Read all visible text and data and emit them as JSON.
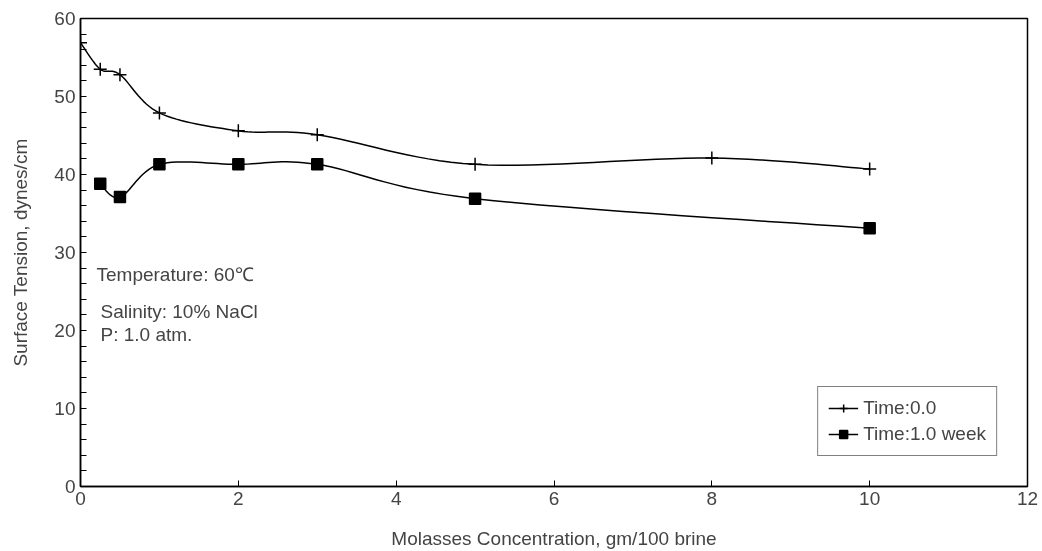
{
  "chart_data": {
    "type": "line",
    "xlabel": "Molasses Concentration, gm/100 brine",
    "ylabel": "Surface Tension, dynes/cm",
    "xlim": [
      0,
      12
    ],
    "xticks": [
      0,
      2,
      4,
      6,
      8,
      10,
      12
    ],
    "ylim": [
      0,
      60
    ],
    "yticks": [
      0,
      {
        "value": 2,
        "label": null
      },
      {
        "value": 4,
        "label": null
      },
      {
        "value": 6,
        "label": null
      },
      {
        "value": 8,
        "label": null
      },
      10,
      {
        "value": 12,
        "label": null
      },
      {
        "value": 14,
        "label": null
      },
      {
        "value": 16,
        "label": null
      },
      {
        "value": 18,
        "label": null
      },
      20,
      {
        "value": 22,
        "label": null
      },
      {
        "value": 24,
        "label": null
      },
      {
        "value": 26,
        "label": null
      },
      {
        "value": 28,
        "label": null
      },
      30,
      {
        "value": 32,
        "label": null
      },
      {
        "value": 34,
        "label": null
      },
      {
        "value": 36,
        "label": null
      },
      {
        "value": 38,
        "label": null
      },
      40,
      {
        "value": 42,
        "label": null
      },
      {
        "value": 44,
        "label": null
      },
      {
        "value": 46,
        "label": null
      },
      {
        "value": 48,
        "label": null
      },
      50,
      {
        "value": 52,
        "label": null
      },
      {
        "value": 54,
        "label": null
      },
      {
        "value": 56,
        "label": null
      },
      {
        "value": 58,
        "label": null
      },
      60
    ],
    "grid": false,
    "legend": "bottom right",
    "annotations": [
      "Temperature: 60℃",
      "Salinity: 10% NaCl",
      "P: 1.0 atm."
    ],
    "series": [
      {
        "name": "Time:0.0",
        "color": "#000000",
        "marker": "cross",
        "x": [
          0,
          0.25,
          0.5,
          1,
          2,
          3,
          5,
          8,
          10
        ],
        "values": [
          56.9,
          53.5,
          52.8,
          47.9,
          45.6,
          45.1,
          41.3,
          42.1,
          40.7
        ]
      },
      {
        "name": "Time:1.0 week",
        "color": "#000000",
        "marker": "square",
        "x": [
          0.25,
          0.5,
          1,
          2,
          3,
          5,
          10
        ],
        "values": [
          38.8,
          37.1,
          41.3,
          41.3,
          41.3,
          36.9,
          33.1
        ]
      }
    ]
  }
}
